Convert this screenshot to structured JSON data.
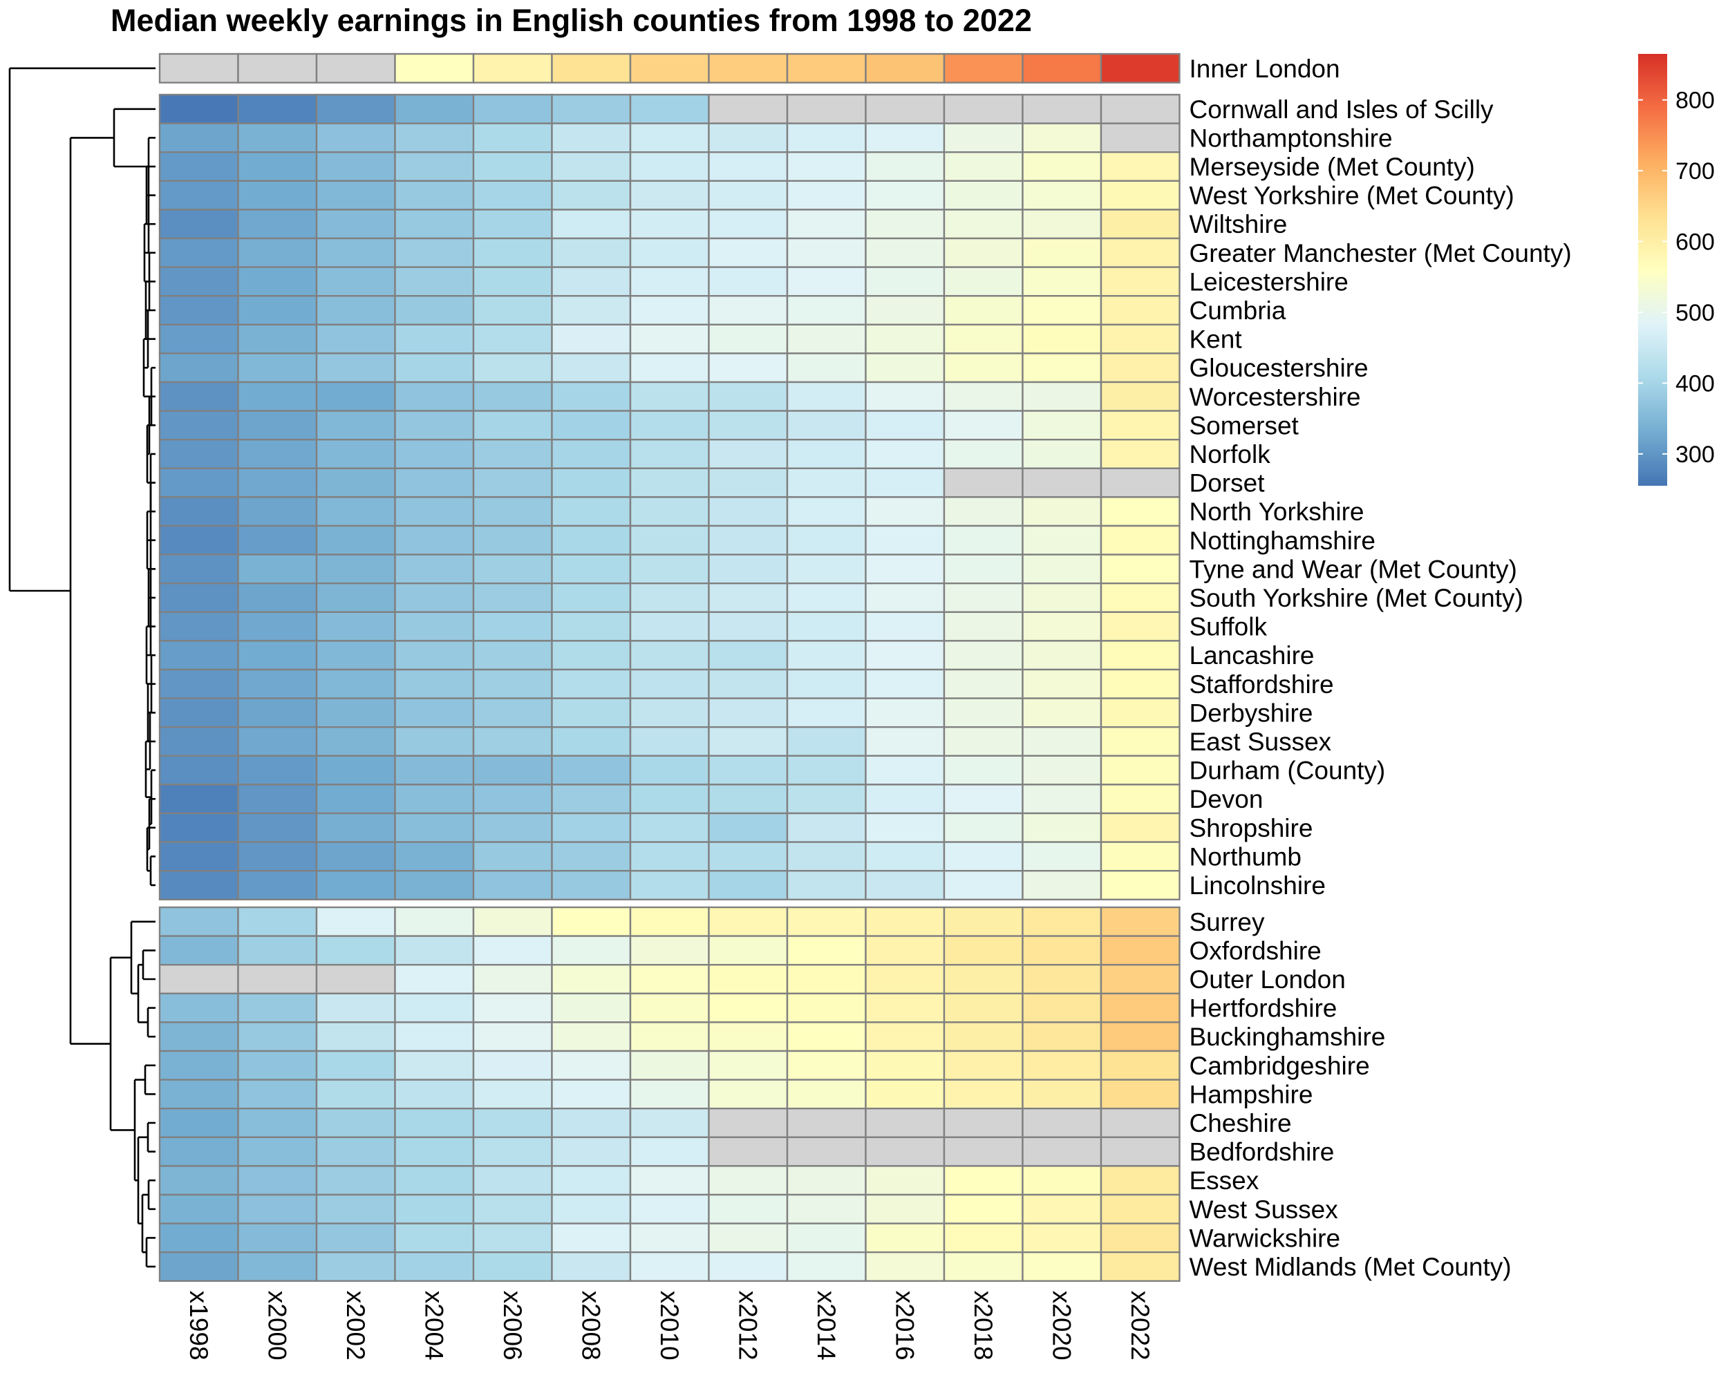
{
  "chart_data": {
    "type": "heatmap",
    "title": "Median weekly earnings in English counties from 1998 to 2022",
    "columns": [
      "x1998",
      "x2000",
      "x2002",
      "x2004",
      "x2006",
      "x2008",
      "x2010",
      "x2012",
      "x2014",
      "x2016",
      "x2018",
      "x2020",
      "x2022"
    ],
    "row_groups": [
      {
        "rows": [
          {
            "name": "Inner London",
            "values": [
              null,
              null,
              null,
              560,
              590,
              630,
              655,
              665,
              670,
              680,
              745,
              775,
              850
            ]
          }
        ]
      },
      {
        "rows": [
          {
            "name": "Cornwall and Isles of Scilly",
            "values": [
              260,
              275,
              300,
              340,
              370,
              385,
              395,
              null,
              null,
              null,
              null,
              null,
              null
            ]
          },
          {
            "name": "Northamptonshire",
            "values": [
              320,
              340,
              365,
              385,
              410,
              445,
              460,
              455,
              470,
              480,
              510,
              530,
              null
            ]
          },
          {
            "name": "Merseyside (Met County)",
            "values": [
              305,
              330,
              355,
              385,
              410,
              440,
              460,
              470,
              480,
              500,
              520,
              545,
              580
            ]
          },
          {
            "name": "West Yorkshire (Met County)",
            "values": [
              305,
              330,
              350,
              380,
              400,
              430,
              455,
              465,
              480,
              495,
              515,
              535,
              575
            ]
          },
          {
            "name": "Wiltshire",
            "values": [
              290,
              325,
              355,
              380,
              400,
              460,
              465,
              470,
              490,
              505,
              520,
              525,
              600
            ]
          },
          {
            "name": "Greater Manchester (Met County)",
            "values": [
              305,
              335,
              360,
              385,
              410,
              440,
              460,
              480,
              490,
              505,
              525,
              550,
              590
            ]
          },
          {
            "name": "Leicestershire",
            "values": [
              300,
              330,
              360,
              385,
              410,
              450,
              470,
              470,
              485,
              500,
              515,
              545,
              590
            ]
          },
          {
            "name": "Cumbria",
            "values": [
              300,
              330,
              360,
              380,
              415,
              455,
              480,
              490,
              495,
              510,
              540,
              555,
              590
            ]
          },
          {
            "name": "Kent",
            "values": [
              310,
              340,
              370,
              400,
              420,
              475,
              490,
              500,
              505,
              520,
              545,
              565,
              590
            ]
          },
          {
            "name": "Gloucestershire",
            "values": [
              320,
              350,
              375,
              400,
              430,
              450,
              480,
              485,
              500,
              520,
              545,
              555,
              595
            ]
          },
          {
            "name": "Worcestershire",
            "values": [
              295,
              330,
              330,
              370,
              380,
              400,
              430,
              430,
              465,
              490,
              505,
              510,
              600
            ]
          },
          {
            "name": "Somerset",
            "values": [
              300,
              320,
              350,
              375,
              400,
              395,
              420,
              430,
              450,
              470,
              490,
              520,
              585
            ]
          },
          {
            "name": "Norfolk",
            "values": [
              300,
              325,
              350,
              370,
              385,
              400,
              425,
              450,
              460,
              480,
              500,
              515,
              585
            ]
          },
          {
            "name": "Dorset",
            "values": [
              305,
              325,
              345,
              370,
              385,
              405,
              430,
              440,
              465,
              470,
              null,
              null,
              null
            ]
          },
          {
            "name": "North Yorkshire",
            "values": [
              290,
              320,
              350,
              370,
              380,
              410,
              430,
              445,
              470,
              490,
              510,
              525,
              560
            ]
          },
          {
            "name": "Nottinghamshire",
            "values": [
              285,
              310,
              340,
              370,
              380,
              405,
              430,
              445,
              460,
              480,
              500,
              520,
              570
            ]
          },
          {
            "name": "Tyne and Wear (Met County)",
            "values": [
              295,
              340,
              345,
              375,
              390,
              410,
              430,
              445,
              465,
              485,
              500,
              520,
              560
            ]
          },
          {
            "name": "South Yorkshire (Met County)",
            "values": [
              295,
              320,
              345,
              375,
              385,
              410,
              440,
              455,
              470,
              490,
              505,
              525,
              570
            ]
          },
          {
            "name": "Suffolk",
            "values": [
              300,
              325,
              355,
              380,
              395,
              415,
              445,
              450,
              460,
              480,
              510,
              530,
              580
            ]
          },
          {
            "name": "Lancashire",
            "values": [
              310,
              330,
              350,
              380,
              390,
              415,
              430,
              425,
              465,
              485,
              510,
              525,
              570
            ]
          },
          {
            "name": "Staffordshire",
            "values": [
              300,
              325,
              350,
              380,
              390,
              420,
              435,
              440,
              460,
              480,
              510,
              530,
              570
            ]
          },
          {
            "name": "Derbyshire",
            "values": [
              295,
              320,
              345,
              370,
              385,
              415,
              440,
              450,
              470,
              490,
              510,
              530,
              575
            ]
          },
          {
            "name": "East Sussex",
            "values": [
              295,
              325,
              345,
              380,
              390,
              405,
              435,
              455,
              435,
              490,
              510,
              510,
              565
            ]
          },
          {
            "name": "Durham (County)",
            "values": [
              290,
              305,
              330,
              355,
              355,
              370,
              405,
              420,
              425,
              480,
              500,
              510,
              565
            ]
          },
          {
            "name": "Devon",
            "values": [
              270,
              300,
              330,
              360,
              370,
              385,
              410,
              415,
              430,
              470,
              485,
              505,
              565
            ]
          },
          {
            "name": "Shropshire",
            "values": [
              275,
              300,
              335,
              360,
              375,
              395,
              420,
              395,
              450,
              480,
              500,
              520,
              585
            ]
          },
          {
            "name": "Northumb",
            "values": [
              280,
              300,
              320,
              340,
              380,
              385,
              420,
              420,
              440,
              460,
              480,
              500,
              565
            ]
          },
          {
            "name": "Lincolnshire",
            "values": [
              285,
              305,
              330,
              340,
              370,
              380,
              420,
              400,
              440,
              450,
              480,
              510,
              560
            ]
          }
        ]
      },
      {
        "rows": [
          {
            "name": "Surrey",
            "values": [
              370,
              400,
              480,
              500,
              525,
              560,
              570,
              580,
              580,
              590,
              600,
              615,
              660
            ]
          },
          {
            "name": "Oxfordshire",
            "values": [
              350,
              390,
              410,
              440,
              480,
              500,
              525,
              540,
              560,
              590,
              610,
              625,
              670
            ]
          },
          {
            "name": "Outer London",
            "values": [
              null,
              null,
              null,
              480,
              505,
              535,
              555,
              565,
              570,
              590,
              600,
              620,
              660
            ]
          },
          {
            "name": "Hertfordshire",
            "values": [
              360,
              380,
              450,
              460,
              490,
              515,
              550,
              560,
              565,
              585,
              600,
              620,
              670
            ]
          },
          {
            "name": "Buckinghamshire",
            "values": [
              345,
              380,
              440,
              470,
              490,
              520,
              545,
              550,
              560,
              585,
              600,
              620,
              670
            ]
          },
          {
            "name": "Cambridgeshire",
            "values": [
              340,
              370,
              405,
              455,
              475,
              490,
              515,
              535,
              555,
              575,
              595,
              605,
              630
            ]
          },
          {
            "name": "Hampshire",
            "values": [
              340,
              370,
              415,
              435,
              465,
              480,
              500,
              535,
              545,
              575,
              590,
              600,
              640
            ]
          },
          {
            "name": "Cheshire",
            "values": [
              330,
              360,
              390,
              405,
              420,
              445,
              455,
              null,
              null,
              null,
              null,
              null,
              null
            ]
          },
          {
            "name": "Bedfordshire",
            "values": [
              335,
              360,
              385,
              405,
              425,
              450,
              470,
              null,
              null,
              null,
              null,
              null,
              null
            ]
          },
          {
            "name": "Essex",
            "values": [
              345,
              365,
              385,
              405,
              435,
              460,
              490,
              505,
              510,
              525,
              560,
              565,
              610
            ]
          },
          {
            "name": "West Sussex",
            "values": [
              340,
              365,
              385,
              405,
              425,
              460,
              480,
              500,
              505,
              525,
              560,
              580,
              610
            ]
          },
          {
            "name": "Warwickshire",
            "values": [
              330,
              355,
              375,
              410,
              425,
              480,
              490,
              505,
              500,
              550,
              570,
              580,
              620
            ]
          },
          {
            "name": "West Midlands (Met County)",
            "values": [
              320,
              350,
              385,
              395,
              410,
              450,
              480,
              480,
              495,
              530,
              545,
              555,
              610
            ]
          }
        ]
      }
    ],
    "color_scale": {
      "min": 255,
      "max": 865,
      "ticks": [
        300,
        400,
        500,
        600,
        700,
        800
      ],
      "stops": [
        "#4575B4",
        "#74ADD1",
        "#ABD9E9",
        "#E0F3F8",
        "#FFFFBF",
        "#FEE090",
        "#FDAE61",
        "#F46D43",
        "#D73027"
      ],
      "na_color": "#D3D3D3"
    },
    "legend_placement": "top-right",
    "row_dendrogram": true
  }
}
